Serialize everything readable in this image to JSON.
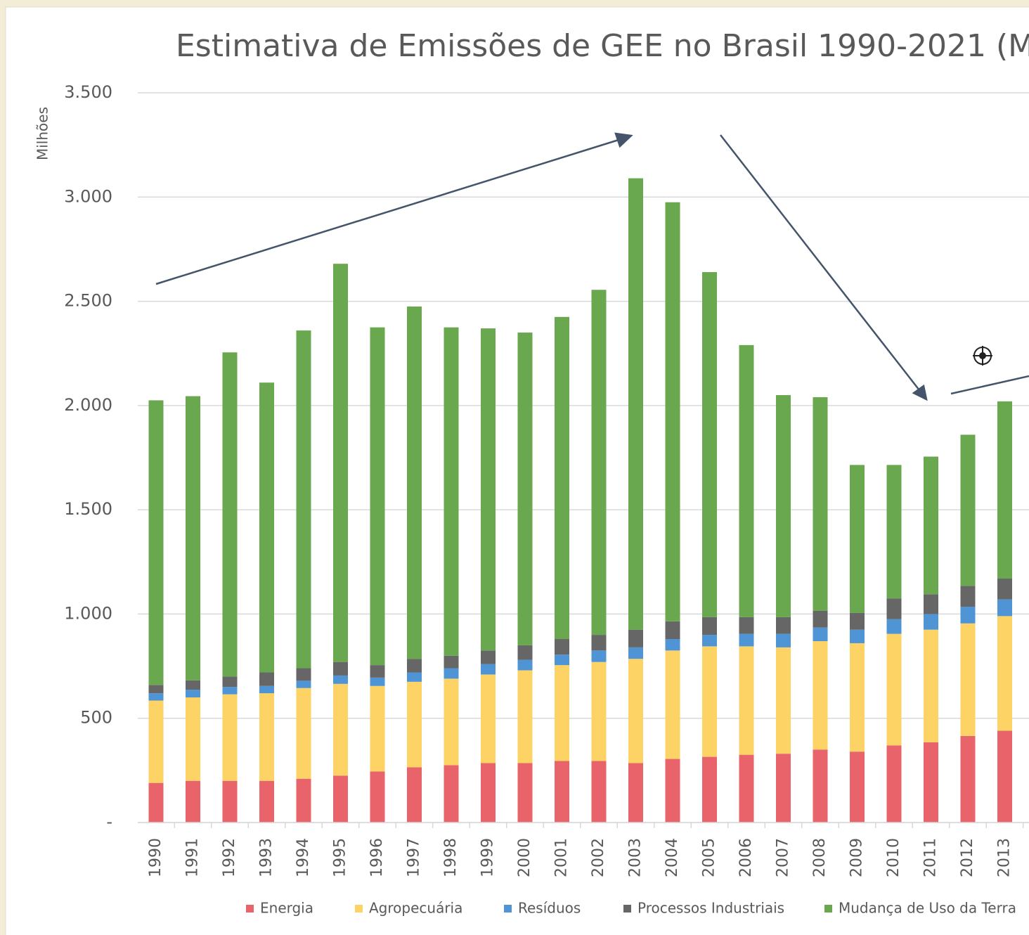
{
  "chart_data": {
    "type": "stacked_bar",
    "title": "Estimativa de Emissões de GEE no Brasil 1990-2021  (M",
    "y_label": "Milhões",
    "categories": [
      "1990",
      "1991",
      "1992",
      "1993",
      "1994",
      "1995",
      "1996",
      "1997",
      "1998",
      "1999",
      "2000",
      "2001",
      "2002",
      "2003",
      "2004",
      "2005",
      "2006",
      "2007",
      "2008",
      "2009",
      "2010",
      "2011",
      "2012",
      "2013"
    ],
    "series": [
      {
        "name": "Energia",
        "color": "#e8636a",
        "values": [
          190,
          200,
          200,
          200,
          210,
          225,
          245,
          265,
          275,
          285,
          285,
          295,
          295,
          285,
          305,
          315,
          325,
          330,
          350,
          340,
          370,
          385,
          415,
          440
        ]
      },
      {
        "name": "Agropecuária",
        "color": "#fdd366",
        "values": [
          395,
          400,
          415,
          420,
          435,
          440,
          410,
          410,
          415,
          425,
          445,
          460,
          475,
          500,
          520,
          530,
          520,
          510,
          520,
          520,
          535,
          540,
          540,
          550
        ]
      },
      {
        "name": "Resíduos",
        "color": "#4f94d4",
        "values": [
          35,
          37,
          35,
          35,
          35,
          40,
          40,
          45,
          50,
          50,
          50,
          50,
          55,
          55,
          55,
          55,
          60,
          65,
          65,
          65,
          70,
          75,
          80,
          80
        ]
      },
      {
        "name": "Processos Industriais",
        "color": "#666666",
        "values": [
          40,
          45,
          50,
          65,
          60,
          65,
          60,
          65,
          60,
          65,
          70,
          75,
          75,
          85,
          85,
          85,
          80,
          80,
          80,
          80,
          100,
          95,
          100,
          100
        ]
      },
      {
        "name": "Mudança de Uso da Terra",
        "color": "#6aa84f",
        "values": [
          1365,
          1363,
          1555,
          1390,
          1620,
          1910,
          1620,
          1690,
          1575,
          1545,
          1500,
          1545,
          1655,
          2165,
          2010,
          1655,
          1305,
          1065,
          1025,
          710,
          640,
          660,
          725,
          850
        ]
      }
    ],
    "ylim": [
      0,
      3500
    ],
    "yticks": [
      {
        "value": 0,
        "label": "-"
      },
      500,
      {
        "value": 1000,
        "label": "1.000"
      },
      {
        "value": 1500,
        "label": "1.500"
      },
      {
        "value": 2000,
        "label": "2.000"
      },
      {
        "value": 2500,
        "label": "2.500"
      },
      {
        "value": 3000,
        "label": "3.000"
      },
      {
        "value": 3500,
        "label": "3.500"
      }
    ],
    "grid": true
  }
}
